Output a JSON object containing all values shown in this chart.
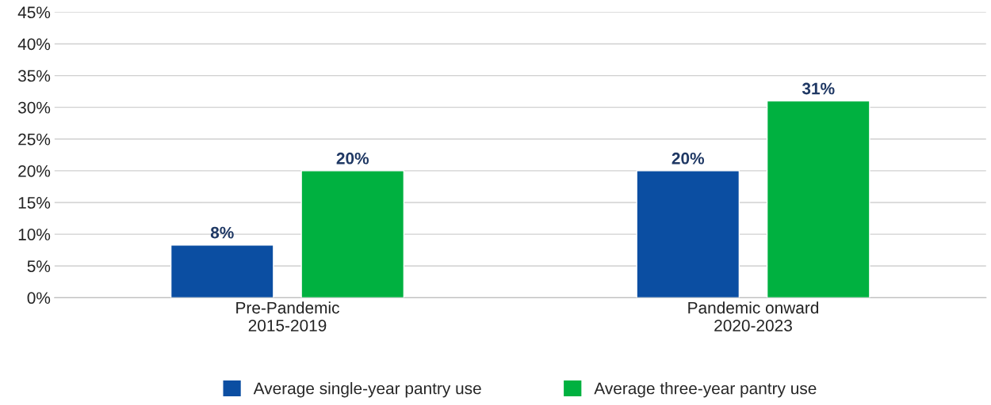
{
  "chart_data": {
    "type": "bar",
    "categories": [
      "Pre-Pandemic\n2015-2019",
      "Pandemic onward\n2020-2023"
    ],
    "series": [
      {
        "name": "Average single-year pantry use",
        "color": "#0b4ea2",
        "values": [
          8.3,
          20
        ],
        "value_labels": [
          "8%",
          "20%"
        ]
      },
      {
        "name": "Average three-year pantry use",
        "color": "#00b140",
        "values": [
          20,
          31
        ],
        "value_labels": [
          "20%",
          "31%"
        ]
      }
    ],
    "ylim": [
      0,
      45
    ],
    "yticks": [
      {
        "value": 0,
        "label": "0%"
      },
      {
        "value": 5,
        "label": "5%"
      },
      {
        "value": 10,
        "label": "10%"
      },
      {
        "value": 15,
        "label": "15%"
      },
      {
        "value": 20,
        "label": "20%"
      },
      {
        "value": 25,
        "label": "25%"
      },
      {
        "value": 30,
        "label": "30%"
      },
      {
        "value": 35,
        "label": "35%"
      },
      {
        "value": 40,
        "label": "40%"
      },
      {
        "value": 45,
        "label": "45%"
      }
    ],
    "grid": "y",
    "legend": "bottom"
  }
}
